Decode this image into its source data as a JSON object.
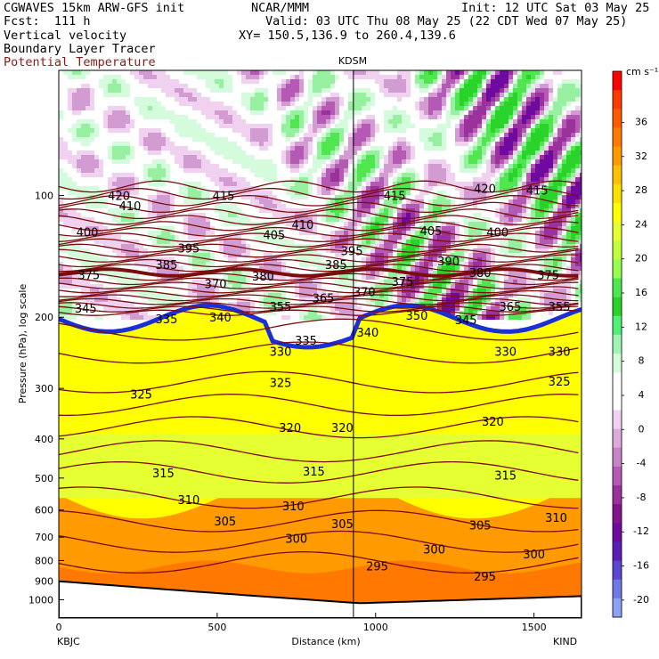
{
  "header": {
    "line1_left": "CGWAVES 15km ARW-GFS init",
    "line1_center": "NCAR/MMM",
    "line1_right": "Init: 12 UTC Sat 03 May 25",
    "line2_left": "Fcst:  111 h",
    "line2_right": "Valid: 03 UTC Thu 08 May 25 (22 CDT Wed 07 May 25)",
    "line3_left": "Vertical velocity",
    "line3_right": "XY= 150.5,136.9 to 260.4,139.6",
    "line4_left": "Boundary Layer Tracer",
    "line5_left": "Potential Temperature"
  },
  "colors": {
    "theta_contour": "#7a0e0e",
    "tracer": "#1a2fd6",
    "terrain": "#000000"
  },
  "chart_data": {
    "type": "heatmap",
    "title": "",
    "xlabel": "Distance (km)",
    "ylabel": "Pressure (hPa), log scale",
    "xlim": [
      0,
      1650
    ],
    "x_ticks": [
      "0",
      "500",
      "1000",
      "1500"
    ],
    "x_tick_values": [
      0,
      500,
      1000,
      1500
    ],
    "y_ticks": [
      "100",
      "200",
      "300",
      "400",
      "500",
      "600",
      "700",
      "800",
      "900",
      "1000"
    ],
    "y_tick_values": [
      100,
      200,
      300,
      400,
      500,
      600,
      700,
      800,
      900,
      1000
    ],
    "y_scale": "log",
    "start_label": "KBJC",
    "end_label": "KIND",
    "marker_label": "KDSM",
    "marker_x": 930,
    "colorbar": {
      "unit": "cm s⁻¹",
      "tick_labels": [
        "36",
        "32",
        "28",
        "24",
        "20",
        "16",
        "12",
        "8",
        "4",
        "0",
        "-4",
        "-8",
        "-12",
        "-16",
        "-20"
      ],
      "colors": [
        "#ff0000",
        "#ff3a00",
        "#ff5a00",
        "#ff7800",
        "#ff9a00",
        "#ffc000",
        "#ffe000",
        "#ffff00",
        "#e6ff33",
        "#c0ff3c",
        "#96ff50",
        "#50e650",
        "#2ad32a",
        "#50f078",
        "#a0f5b4",
        "#d4fcdc",
        "#ffffff",
        "#ffffff",
        "#f0d2f0",
        "#dcaadc",
        "#c882c8",
        "#b45ab4",
        "#9b329b",
        "#82148c",
        "#6e0aa0",
        "#5a1eb4",
        "#5a46d2",
        "#6e78e6",
        "#8ca0f5"
      ],
      "range": [
        -22,
        42
      ]
    },
    "theta_labels": [
      {
        "x": 190,
        "p": 100,
        "v": "420"
      },
      {
        "x": 520,
        "p": 100,
        "v": "415"
      },
      {
        "x": 1345,
        "p": 96,
        "v": "420"
      },
      {
        "x": 1510,
        "p": 97,
        "v": "415"
      },
      {
        "x": 225,
        "p": 106,
        "v": "410"
      },
      {
        "x": 1060,
        "p": 100,
        "v": "415"
      },
      {
        "x": 770,
        "p": 118,
        "v": "410"
      },
      {
        "x": 90,
        "p": 123,
        "v": "400"
      },
      {
        "x": 680,
        "p": 125,
        "v": "405"
      },
      {
        "x": 1175,
        "p": 122,
        "v": "405"
      },
      {
        "x": 1385,
        "p": 123,
        "v": "400"
      },
      {
        "x": 410,
        "p": 135,
        "v": "395"
      },
      {
        "x": 925,
        "p": 137,
        "v": "395"
      },
      {
        "x": 1230,
        "p": 145,
        "v": "390"
      },
      {
        "x": 340,
        "p": 148,
        "v": "385"
      },
      {
        "x": 875,
        "p": 148,
        "v": "385"
      },
      {
        "x": 1330,
        "p": 155,
        "v": "380"
      },
      {
        "x": 95,
        "p": 157,
        "v": "375"
      },
      {
        "x": 645,
        "p": 158,
        "v": "380"
      },
      {
        "x": 1545,
        "p": 157,
        "v": "375"
      },
      {
        "x": 495,
        "p": 165,
        "v": "370"
      },
      {
        "x": 965,
        "p": 173,
        "v": "370"
      },
      {
        "x": 1085,
        "p": 163,
        "v": "375"
      },
      {
        "x": 835,
        "p": 179,
        "v": "365"
      },
      {
        "x": 700,
        "p": 188,
        "v": "355"
      },
      {
        "x": 1425,
        "p": 188,
        "v": "365"
      },
      {
        "x": 1580,
        "p": 188,
        "v": "355"
      },
      {
        "x": 85,
        "p": 190,
        "v": "345"
      },
      {
        "x": 1130,
        "p": 198,
        "v": "350"
      },
      {
        "x": 1285,
        "p": 203,
        "v": "345"
      },
      {
        "x": 340,
        "p": 202,
        "v": "335"
      },
      {
        "x": 510,
        "p": 200,
        "v": "340"
      },
      {
        "x": 975,
        "p": 218,
        "v": "340"
      },
      {
        "x": 780,
        "p": 228,
        "v": "335"
      },
      {
        "x": 700,
        "p": 243,
        "v": "330"
      },
      {
        "x": 1410,
        "p": 243,
        "v": "330"
      },
      {
        "x": 1580,
        "p": 243,
        "v": "330"
      },
      {
        "x": 700,
        "p": 290,
        "v": "325"
      },
      {
        "x": 260,
        "p": 310,
        "v": "325"
      },
      {
        "x": 1580,
        "p": 288,
        "v": "325"
      },
      {
        "x": 730,
        "p": 375,
        "v": "320"
      },
      {
        "x": 895,
        "p": 375,
        "v": "320"
      },
      {
        "x": 1370,
        "p": 362,
        "v": "320"
      },
      {
        "x": 330,
        "p": 485,
        "v": "315"
      },
      {
        "x": 805,
        "p": 480,
        "v": "315"
      },
      {
        "x": 1410,
        "p": 492,
        "v": "315"
      },
      {
        "x": 410,
        "p": 565,
        "v": "310"
      },
      {
        "x": 740,
        "p": 585,
        "v": "310"
      },
      {
        "x": 1570,
        "p": 625,
        "v": "310"
      },
      {
        "x": 525,
        "p": 638,
        "v": "305"
      },
      {
        "x": 895,
        "p": 648,
        "v": "305"
      },
      {
        "x": 1330,
        "p": 653,
        "v": "305"
      },
      {
        "x": 750,
        "p": 705,
        "v": "300"
      },
      {
        "x": 1185,
        "p": 750,
        "v": "300"
      },
      {
        "x": 1500,
        "p": 770,
        "v": "300"
      },
      {
        "x": 1005,
        "p": 825,
        "v": "295"
      },
      {
        "x": 1345,
        "p": 875,
        "v": "295"
      }
    ]
  }
}
